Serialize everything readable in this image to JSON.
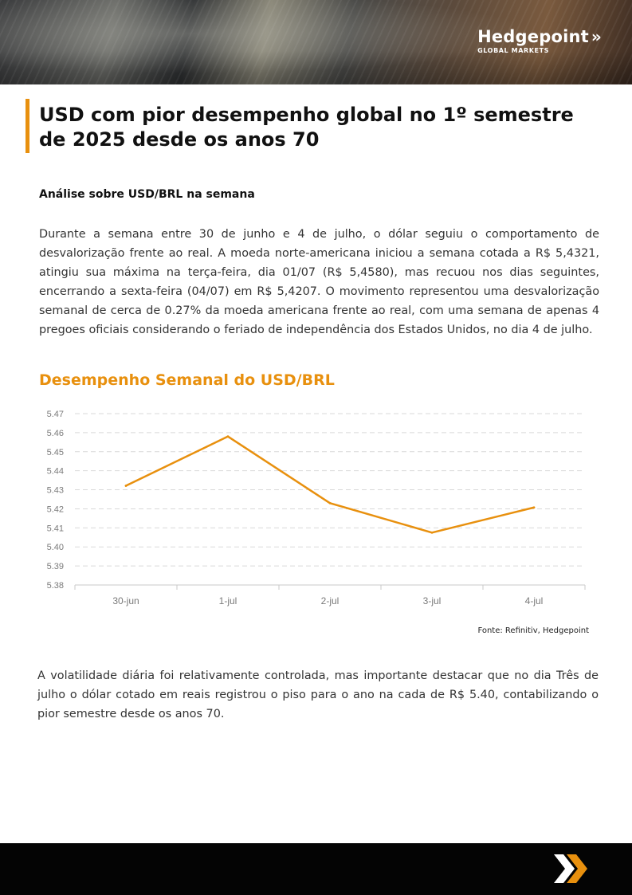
{
  "header": {
    "brand_name": "Hedgepoint",
    "brand_sub": "GLOBAL MARKETS",
    "brand_icon": "double-chevron-right-icon"
  },
  "title": "USD com pior desempenho global no 1º semestre de 2025 desde os anos 70",
  "subtitle": "Análise sobre USD/BRL na semana",
  "paragraph1": "Durante a semana entre 30 de junho e 4 de julho, o dólar seguiu o comportamento de desvalorização frente ao real. A moeda norte-americana iniciou a semana cotada a R$ 5,4321, atingiu sua máxima na terça-feira, dia 01/07 (R$ 5,4580), mas recuou nos dias seguintes, encerrando a sexta-feira (04/07) em R$ 5,4207. O movimento representou uma desvalorização semanal de cerca de 0.27% da moeda americana frente ao real, com uma semana de apenas 4 pregoes oficiais considerando o feriado de independência dos Estados Unidos, no dia 4 de julho.",
  "chart_title": "Desempenho Semanal do USD/BRL",
  "chart_data": {
    "type": "line",
    "categories": [
      "30-jun",
      "1-jul",
      "2-jul",
      "3-jul",
      "4-jul"
    ],
    "series": [
      {
        "values": [
          5.4321,
          5.458,
          5.423,
          5.4075,
          5.4207
        ],
        "color": "#e8900e"
      }
    ],
    "yticks": [
      "5.47",
      "5.46",
      "5.45",
      "5.44",
      "5.43",
      "5.42",
      "5.41",
      "5.40",
      "5.39",
      "5.38"
    ],
    "ylim": [
      5.38,
      5.47
    ],
    "grid": true,
    "gridstyle": "dashed"
  },
  "source": "Fonte: Refinitiv, Hedgepoint",
  "paragraph2": "A volatilidade diária foi relativamente controlada, mas importante destacar que no dia Três de julho o dólar cotado em reais registrou o piso para o ano na cada de R$ 5.40, contabilizando  o pior semestre desde os anos 70.",
  "footer": {
    "icon": "double-chevron-right-icon"
  },
  "colors": {
    "accent": "#e8900e",
    "footer": "#040404"
  }
}
